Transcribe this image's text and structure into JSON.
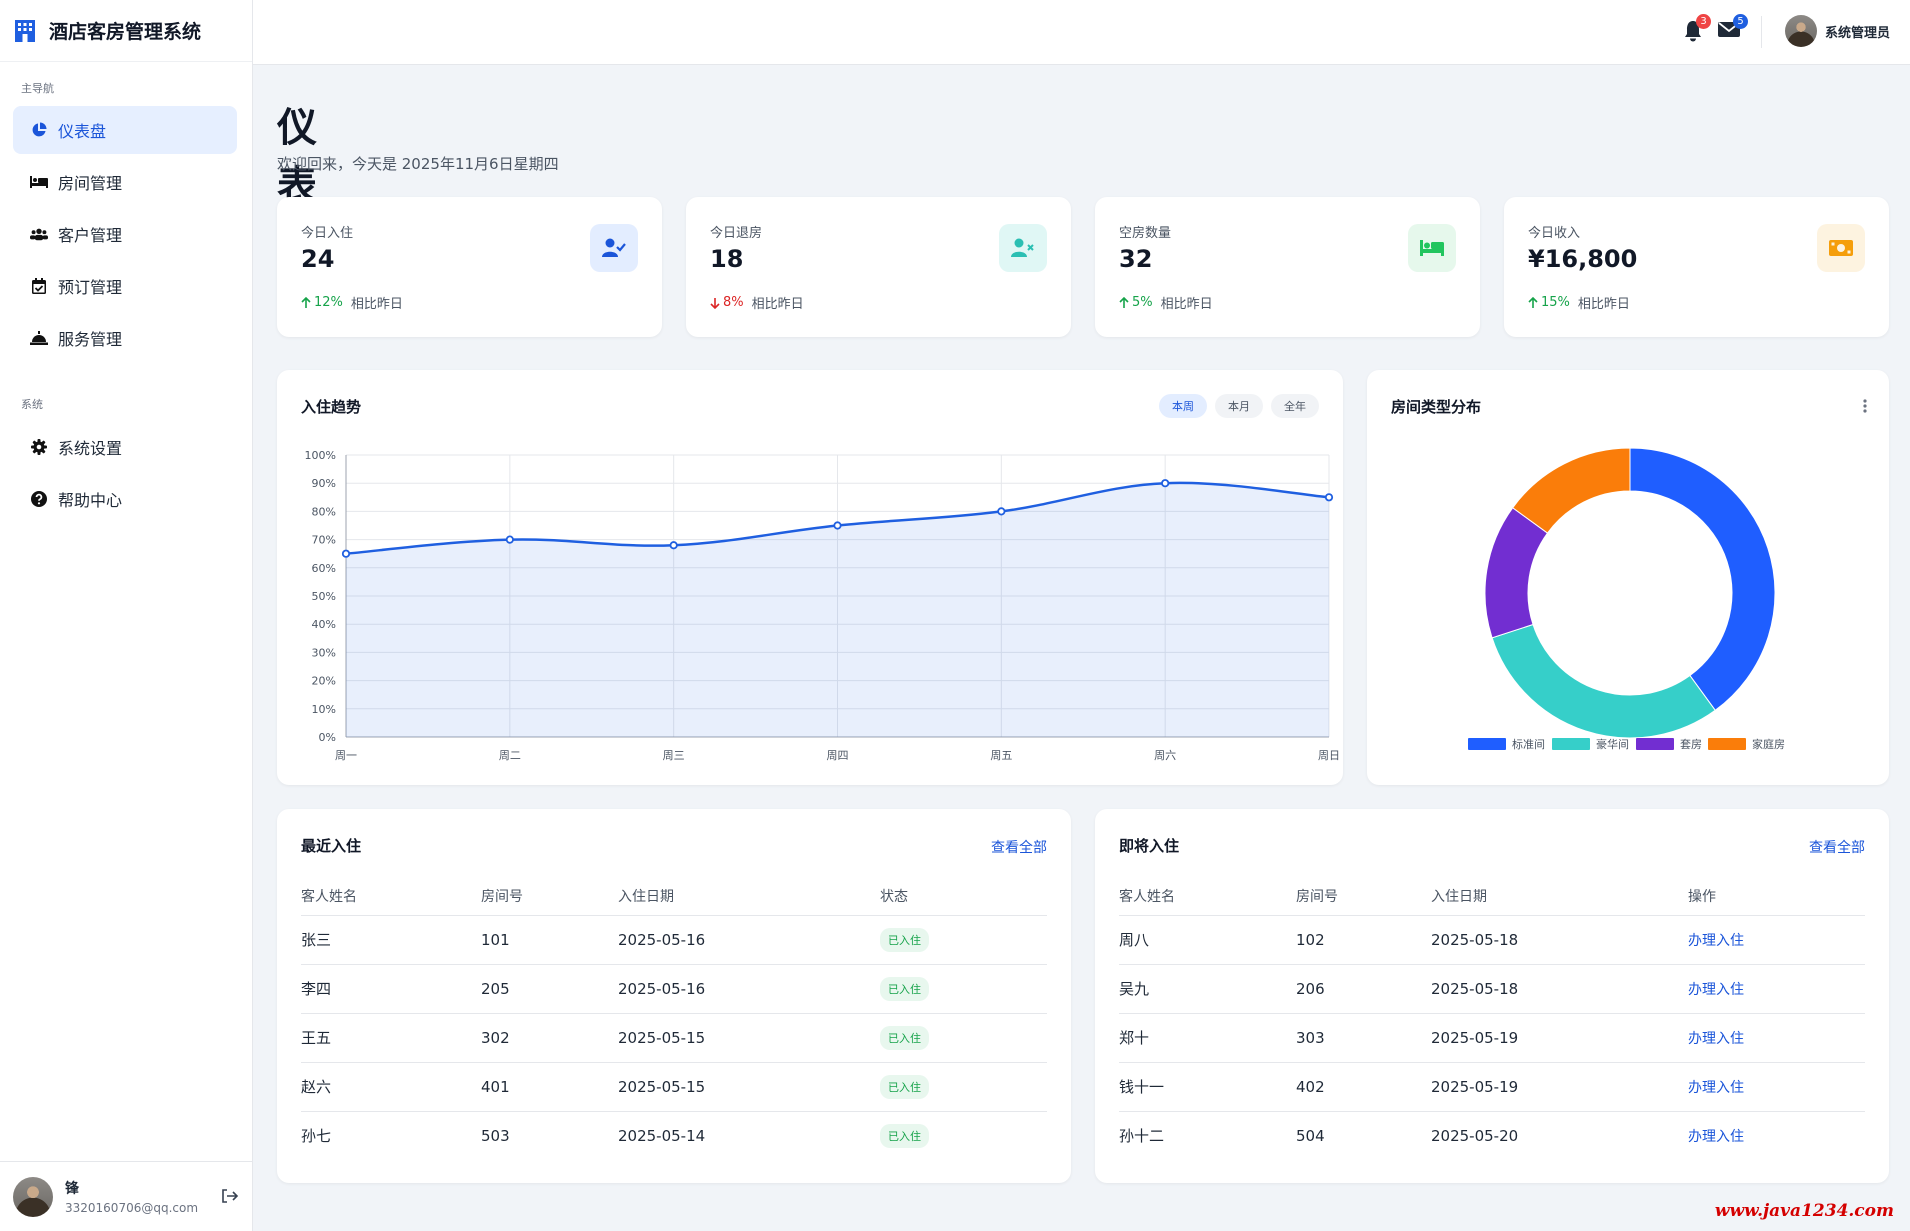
{
  "app": {
    "title": "酒店客房管理系统"
  },
  "sidebar": {
    "main_section": "主导航",
    "system_section": "系统",
    "items": [
      {
        "label": "仪表盘",
        "icon": "chart-pie-icon"
      },
      {
        "label": "房间管理",
        "icon": "bed-icon"
      },
      {
        "label": "客户管理",
        "icon": "users-icon"
      },
      {
        "label": "预订管理",
        "icon": "calendar-check-icon"
      },
      {
        "label": "服务管理",
        "icon": "concierge-bell-icon"
      },
      {
        "label": "系统设置",
        "icon": "gear-icon"
      },
      {
        "label": "帮助中心",
        "icon": "question-circle-icon"
      }
    ],
    "user": {
      "name": "锋",
      "email": "3320160706@qq.com"
    }
  },
  "topbar": {
    "notifications": "3",
    "messages": "5",
    "user_name": "系统管理员"
  },
  "page": {
    "title": "仪表盘",
    "subtitle": "欢迎回来，今天是 2025年11月6日星期四"
  },
  "stats": [
    {
      "label": "今日入住",
      "value": "24",
      "change": "12%",
      "direction": "up",
      "compare": "相比昨日",
      "icon": "user-check-icon"
    },
    {
      "label": "今日退房",
      "value": "18",
      "change": "8%",
      "direction": "down",
      "compare": "相比昨日",
      "icon": "user-times-icon"
    },
    {
      "label": "空房数量",
      "value": "32",
      "change": "5%",
      "direction": "up",
      "compare": "相比昨日",
      "icon": "bed-icon"
    },
    {
      "label": "今日收入",
      "value": "¥16,800",
      "change": "15%",
      "direction": "up",
      "compare": "相比昨日",
      "icon": "money-bill-icon"
    }
  ],
  "trend": {
    "title": "入住趋势",
    "filters": [
      "本周",
      "本月",
      "全年"
    ],
    "active_filter": "本周"
  },
  "distribution": {
    "title": "房间类型分布"
  },
  "colors": {
    "accent": "#1b55d9",
    "up": "#16a34a",
    "down": "#dc2626",
    "line": "#1f5fe0"
  },
  "chart_data": [
    {
      "type": "line",
      "title": "入住趋势",
      "categories": [
        "周一",
        "周二",
        "周三",
        "周四",
        "周五",
        "周六",
        "周日"
      ],
      "values": [
        65,
        70,
        68,
        75,
        80,
        90,
        85
      ],
      "ylim": [
        0,
        100
      ],
      "y_ticks": [
        "0%",
        "10%",
        "20%",
        "30%",
        "40%",
        "50%",
        "60%",
        "70%",
        "80%",
        "90%",
        "100%"
      ],
      "fill": true,
      "grid": true
    },
    {
      "type": "pie",
      "title": "房间类型分布",
      "labels": [
        "标准间",
        "豪华间",
        "套房",
        "家庭房"
      ],
      "values": [
        40,
        30,
        15,
        15
      ],
      "colors": [
        "#1f5eff",
        "#36cfc9",
        "#722ed1",
        "#fa7d0a"
      ],
      "donut": true,
      "legend": "bottom"
    }
  ],
  "recent": {
    "title": "最近入住",
    "view_all": "查看全部",
    "columns": [
      "客人姓名",
      "房间号",
      "入住日期",
      "状态"
    ],
    "rows": [
      {
        "name": "张三",
        "room": "101",
        "date": "2025-05-16",
        "status": "已入住"
      },
      {
        "name": "李四",
        "room": "205",
        "date": "2025-05-16",
        "status": "已入住"
      },
      {
        "name": "王五",
        "room": "302",
        "date": "2025-05-15",
        "status": "已入住"
      },
      {
        "name": "赵六",
        "room": "401",
        "date": "2025-05-15",
        "status": "已入住"
      },
      {
        "name": "孙七",
        "room": "503",
        "date": "2025-05-14",
        "status": "已入住"
      }
    ]
  },
  "upcoming": {
    "title": "即将入住",
    "view_all": "查看全部",
    "columns": [
      "客人姓名",
      "房间号",
      "入住日期",
      "操作"
    ],
    "rows": [
      {
        "name": "周八",
        "room": "102",
        "date": "2025-05-18",
        "action": "办理入住"
      },
      {
        "name": "吴九",
        "room": "206",
        "date": "2025-05-18",
        "action": "办理入住"
      },
      {
        "name": "郑十",
        "room": "303",
        "date": "2025-05-19",
        "action": "办理入住"
      },
      {
        "name": "钱十一",
        "room": "402",
        "date": "2025-05-19",
        "action": "办理入住"
      },
      {
        "name": "孙十二",
        "room": "504",
        "date": "2025-05-20",
        "action": "办理入住"
      }
    ]
  },
  "watermark": "www.java1234.com"
}
